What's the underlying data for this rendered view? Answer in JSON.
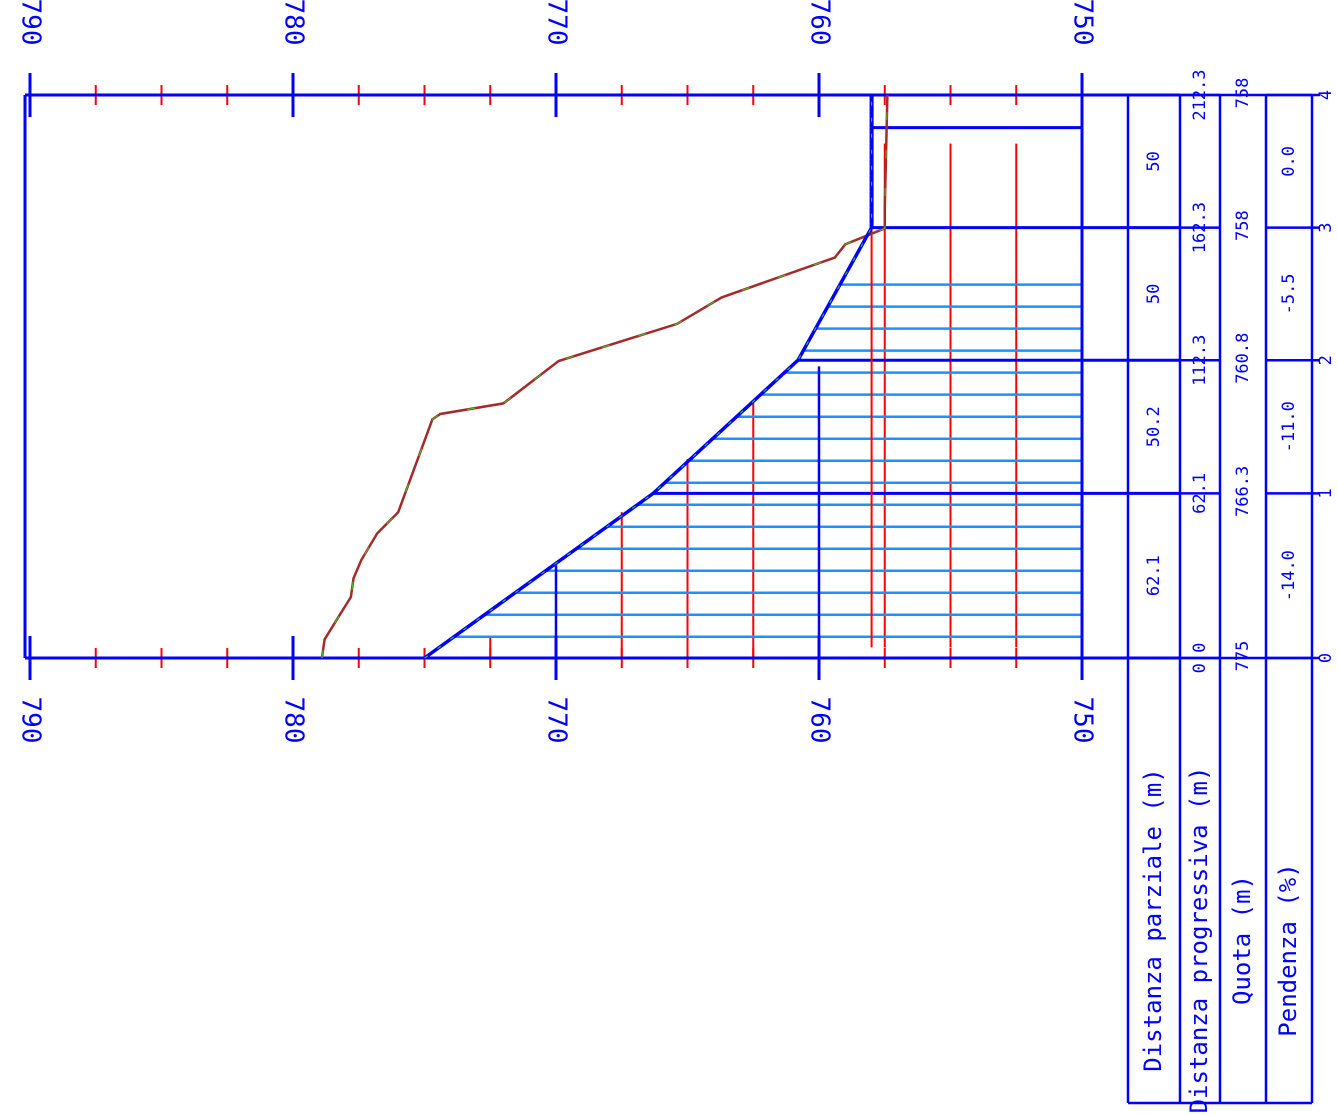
{
  "colors": {
    "frame": "#0000ff",
    "hatch": "#1e90ff",
    "grid_red": "#ff0000",
    "ground_line": "#a52a2a",
    "ground_dash": "#32cd32"
  },
  "elevation_axis": {
    "labels": [
      "790",
      "780",
      "770",
      "760",
      "750"
    ]
  },
  "table": {
    "row_headers": {
      "partial": "Distanza parziale (m)",
      "progressive": "Distanza progressiva (m)",
      "quota": "Quota (m)",
      "pendenza": "Pendenza (%)"
    },
    "progressive": [
      "0.0",
      "62.1",
      "112.3",
      "162.3",
      "212.3"
    ],
    "partial": [
      "62.1",
      "50.2",
      "50",
      "50"
    ],
    "quota": [
      "775",
      "766.3",
      "760.8",
      "758",
      "758"
    ],
    "pendenza": [
      "-14.0",
      "-11.0",
      "-5.5",
      "0.0"
    ],
    "vertex_index": [
      "0",
      "1",
      "2",
      "3",
      "4"
    ]
  },
  "chart_data": {
    "type": "line",
    "orientation": "rotated 90° clockwise (elevation runs horizontally)",
    "elevation_range": [
      750,
      790
    ],
    "distance_range": [
      0,
      212.3
    ],
    "series": [
      {
        "name": "",
        "kind": "design profile",
        "x": [
          0,
          62.1,
          112.3,
          162.3,
          212.3
        ],
        "y": [
          775,
          766.3,
          760.8,
          758,
          758
        ]
      },
      {
        "name": "",
        "kind": "ground profile",
        "x": [
          0,
          7,
          15,
          23,
          30,
          37,
          47,
          55,
          90,
          92,
          96,
          112,
          126,
          136,
          151,
          156,
          162,
          170,
          212.3
        ],
        "y": [
          778.9,
          778.8,
          778.3,
          777.8,
          777.7,
          777.4,
          776.8,
          776.0,
          774.7,
          774.4,
          772.0,
          769.9,
          765.4,
          763.7,
          759.4,
          759.0,
          757.5,
          757.5,
          757.4
        ]
      }
    ]
  }
}
